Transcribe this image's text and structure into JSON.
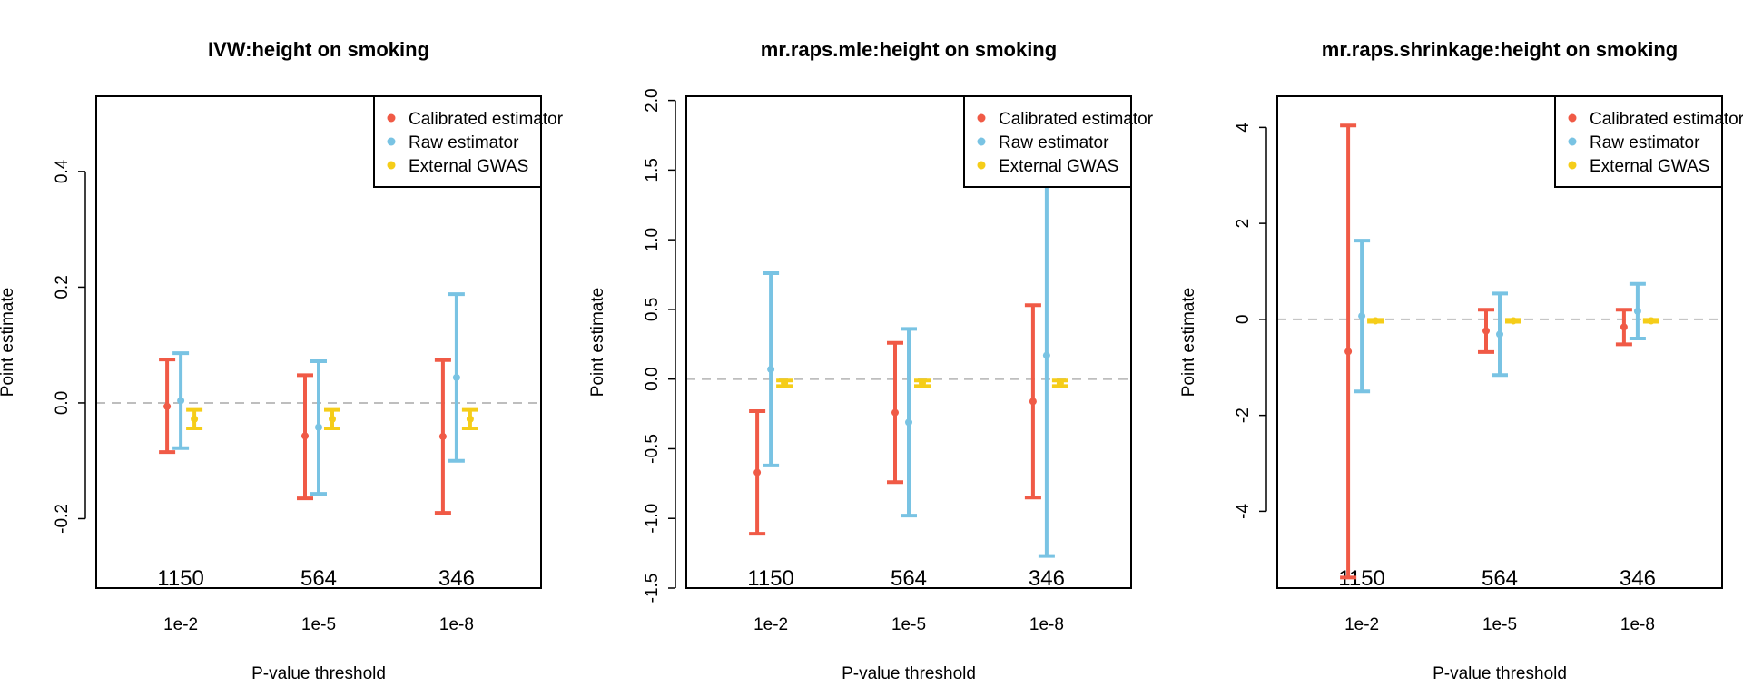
{
  "colors": {
    "calibrated": "#F05A46",
    "raw": "#79C3E3",
    "external": "#F5CD19",
    "zero_line": "#BEBEBE"
  },
  "chart_data": [
    {
      "type": "errorbar",
      "title": "IVW:height on smoking",
      "xlabel": "P-value threshold",
      "ylabel": "Point estimate",
      "categories": [
        "1e-2",
        "1e-5",
        "1e-8"
      ],
      "counts": [
        "1150",
        "564",
        "346"
      ],
      "ylim": [
        -0.32,
        0.53
      ],
      "yticks": [
        -0.2,
        0.0,
        0.2,
        0.4
      ],
      "ytick_labels": [
        "-0.2",
        "0.0",
        "0.2",
        "0.4"
      ],
      "zero_line": true,
      "legend_position": "top-right",
      "series": [
        {
          "name": "Calibrated estimator",
          "color_key": "calibrated",
          "points": [
            {
              "y": -0.006,
              "lo": -0.085,
              "hi": 0.075
            },
            {
              "y": -0.057,
              "lo": -0.165,
              "hi": 0.048
            },
            {
              "y": -0.058,
              "lo": -0.19,
              "hi": 0.074
            }
          ]
        },
        {
          "name": "Raw estimator",
          "color_key": "raw",
          "points": [
            {
              "y": 0.004,
              "lo": -0.078,
              "hi": 0.086
            },
            {
              "y": -0.042,
              "lo": -0.157,
              "hi": 0.072
            },
            {
              "y": 0.044,
              "lo": -0.1,
              "hi": 0.188
            }
          ]
        },
        {
          "name": "External GWAS",
          "color_key": "external",
          "points": [
            {
              "y": -0.028,
              "lo": -0.044,
              "hi": -0.012
            },
            {
              "y": -0.028,
              "lo": -0.044,
              "hi": -0.012
            },
            {
              "y": -0.028,
              "lo": -0.044,
              "hi": -0.012
            }
          ]
        }
      ]
    },
    {
      "type": "errorbar",
      "title": "mr.raps.mle:height on smoking",
      "xlabel": "P-value threshold",
      "ylabel": "Point estimate",
      "categories": [
        "1e-2",
        "1e-5",
        "1e-8"
      ],
      "counts": [
        "1150",
        "564",
        "346"
      ],
      "ylim": [
        -1.5,
        2.03
      ],
      "yticks": [
        -1.5,
        -1.0,
        -0.5,
        0.0,
        0.5,
        1.0,
        1.5,
        2.0
      ],
      "ytick_labels": [
        "-1.5",
        "-1.0",
        "-0.5",
        "0.0",
        "0.5",
        "1.0",
        "1.5",
        "2.0"
      ],
      "zero_line": true,
      "legend_position": "top-right",
      "series": [
        {
          "name": "Calibrated estimator",
          "color_key": "calibrated",
          "points": [
            {
              "y": -0.67,
              "lo": -1.11,
              "hi": -0.23
            },
            {
              "y": -0.24,
              "lo": -0.74,
              "hi": 0.26
            },
            {
              "y": -0.16,
              "lo": -0.85,
              "hi": 0.53
            }
          ]
        },
        {
          "name": "Raw estimator",
          "color_key": "raw",
          "points": [
            {
              "y": 0.07,
              "lo": -0.62,
              "hi": 0.76
            },
            {
              "y": -0.31,
              "lo": -0.98,
              "hi": 0.36
            },
            {
              "y": 0.17,
              "lo": -1.27,
              "hi": 1.62
            }
          ]
        },
        {
          "name": "External GWAS",
          "color_key": "external",
          "points": [
            {
              "y": -0.03,
              "lo": -0.05,
              "hi": -0.01
            },
            {
              "y": -0.03,
              "lo": -0.05,
              "hi": -0.01
            },
            {
              "y": -0.03,
              "lo": -0.05,
              "hi": -0.01
            }
          ]
        }
      ]
    },
    {
      "type": "errorbar",
      "title": "mr.raps.shrinkage:height on smoking",
      "xlabel": "P-value threshold",
      "ylabel": "Point estimate",
      "categories": [
        "1e-2",
        "1e-5",
        "1e-8"
      ],
      "counts": [
        "1150",
        "564",
        "346"
      ],
      "ylim": [
        -5.6,
        4.65
      ],
      "yticks": [
        -4,
        -2,
        0,
        2,
        4
      ],
      "ytick_labels": [
        "-4",
        "-2",
        "0",
        "2",
        "4"
      ],
      "zero_line": true,
      "legend_position": "top-right",
      "series": [
        {
          "name": "Calibrated estimator",
          "color_key": "calibrated",
          "points": [
            {
              "y": -0.67,
              "lo": -5.38,
              "hi": 4.04
            },
            {
              "y": -0.24,
              "lo": -0.68,
              "hi": 0.2
            },
            {
              "y": -0.16,
              "lo": -0.52,
              "hi": 0.2
            }
          ]
        },
        {
          "name": "Raw estimator",
          "color_key": "raw",
          "points": [
            {
              "y": 0.07,
              "lo": -1.5,
              "hi": 1.64
            },
            {
              "y": -0.31,
              "lo": -1.16,
              "hi": 0.54
            },
            {
              "y": 0.17,
              "lo": -0.4,
              "hi": 0.74
            }
          ]
        },
        {
          "name": "External GWAS",
          "color_key": "external",
          "points": [
            {
              "y": -0.03,
              "lo": -0.05,
              "hi": -0.01
            },
            {
              "y": -0.03,
              "lo": -0.05,
              "hi": -0.01
            },
            {
              "y": -0.03,
              "lo": -0.05,
              "hi": -0.01
            }
          ]
        }
      ]
    }
  ]
}
